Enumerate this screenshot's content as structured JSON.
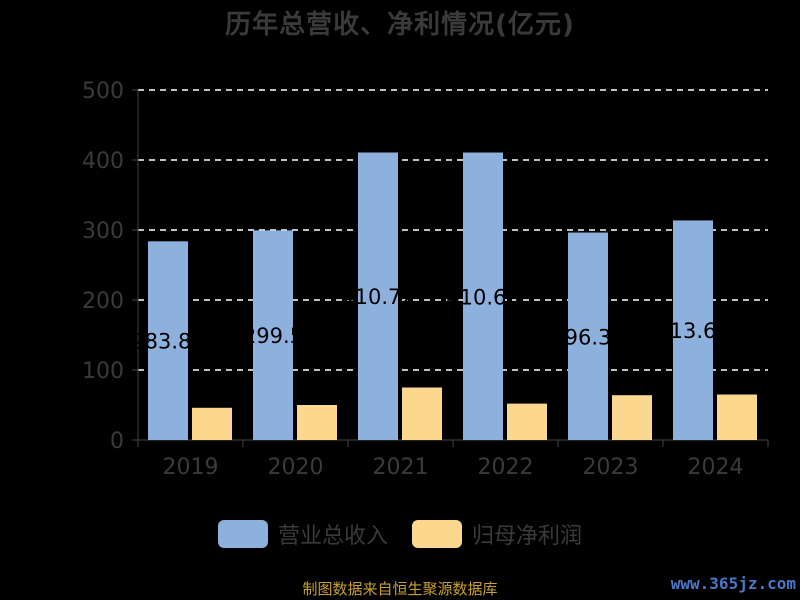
{
  "chart_data": {
    "type": "bar",
    "title": "历年总营收、净利情况(亿元)",
    "categories": [
      "2019",
      "2020",
      "2021",
      "2022",
      "2023",
      "2024"
    ],
    "series": [
      {
        "name": "营业总收入",
        "values": [
          283.82,
          299.5,
          410.72,
          410.68,
          296.36,
          313.69
        ],
        "data_labels": [
          "283.82",
          "299.5",
          "410.72",
          "410.68",
          "296.36",
          "313.69"
        ],
        "color": "#8eb0dd"
      },
      {
        "name": "归母净利润",
        "values": [
          46,
          50,
          75,
          52,
          64,
          65
        ],
        "color": "#fcd88f"
      }
    ],
    "ylim": [
      0,
      500
    ],
    "yticks": [
      0,
      100,
      200,
      300,
      400,
      500
    ],
    "grid": true,
    "legend": "bottom-center"
  },
  "footer": {
    "source": "制图数据来自恒生聚源数据库",
    "watermark": "www.365jz.com"
  },
  "colors": {
    "background": "#000000",
    "text": "#3a3a3a",
    "grid": "#ffffff",
    "source": "#c8a030",
    "watermark": "#4a78c8"
  }
}
